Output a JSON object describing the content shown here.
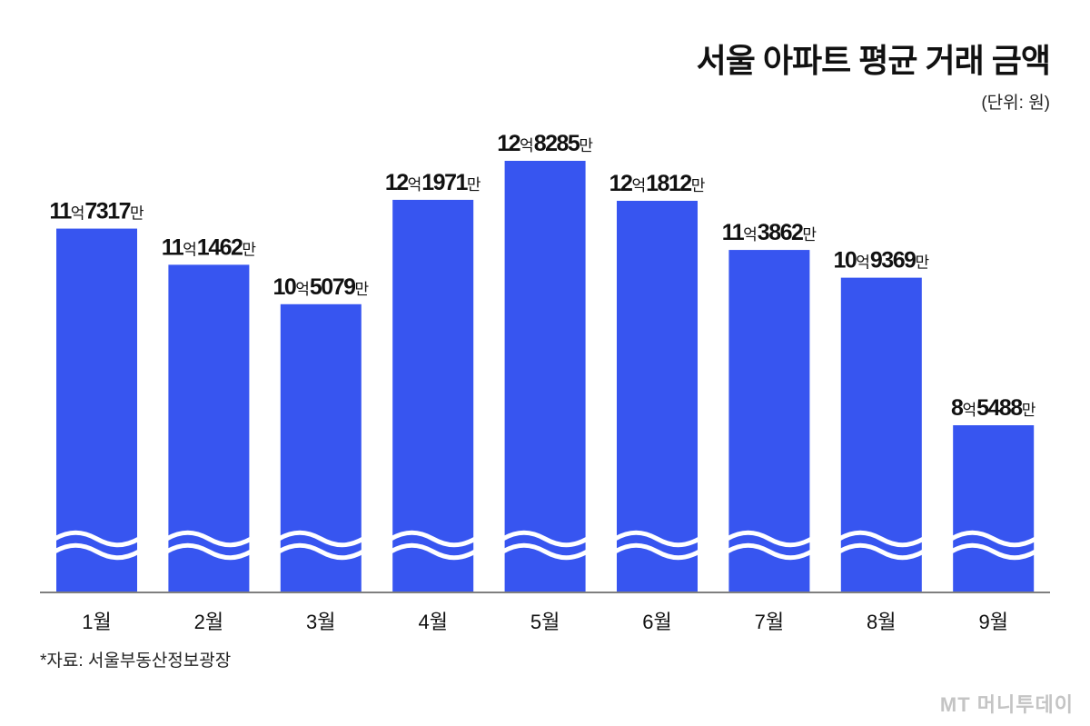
{
  "chart_data": {
    "type": "bar",
    "title": "서울 아파트 평균 거래 금액",
    "unit_label": "(단위: 원)",
    "source": "*자료: 서울부동산정보광장",
    "categories": [
      "1월",
      "2월",
      "3월",
      "4월",
      "5월",
      "6월",
      "7월",
      "8월",
      "9월"
    ],
    "values": [
      1173170000,
      1114620000,
      1050790000,
      1219710000,
      1282850000,
      1218120000,
      1138620000,
      1093690000,
      854880000
    ],
    "data_labels": [
      {
        "eok": "11",
        "eok_unit": "억",
        "man": "7317",
        "man_unit": "만"
      },
      {
        "eok": "11",
        "eok_unit": "억",
        "man": "1462",
        "man_unit": "만"
      },
      {
        "eok": "10",
        "eok_unit": "억",
        "man": "5079",
        "man_unit": "만"
      },
      {
        "eok": "12",
        "eok_unit": "억",
        "man": "1971",
        "man_unit": "만"
      },
      {
        "eok": "12",
        "eok_unit": "억",
        "man": "8285",
        "man_unit": "만"
      },
      {
        "eok": "12",
        "eok_unit": "억",
        "man": "1812",
        "man_unit": "만"
      },
      {
        "eok": "11",
        "eok_unit": "억",
        "man": "3862",
        "man_unit": "만"
      },
      {
        "eok": "10",
        "eok_unit": "억",
        "man": "9369",
        "man_unit": "만"
      },
      {
        "eok": "8",
        "eok_unit": "억",
        "man": "5488",
        "man_unit": "만"
      }
    ],
    "axis_break": true,
    "grid": false,
    "bar_color": "#3755f0"
  },
  "watermark": "MT 머니투데이"
}
